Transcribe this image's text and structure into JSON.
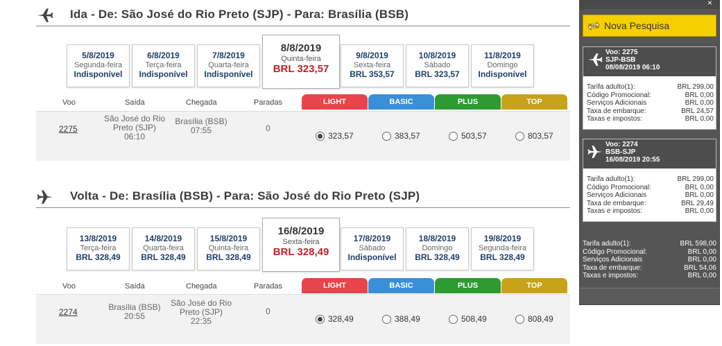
{
  "outbound": {
    "title": "Ida - De: São José do Rio Preto (SJP) - Para: Brasília (BSB)",
    "dates": [
      {
        "date": "5/8/2019",
        "weekday": "Segunda-feira",
        "price": "Indisponível"
      },
      {
        "date": "6/8/2019",
        "weekday": "Terça-feira",
        "price": "Indisponível"
      },
      {
        "date": "7/8/2019",
        "weekday": "Quarta-feira",
        "price": "Indisponível"
      },
      {
        "date": "8/8/2019",
        "weekday": "Quinta-feira",
        "price": "BRL 323,57"
      },
      {
        "date": "9/8/2019",
        "weekday": "Sexta-feira",
        "price": "BRL 353,57"
      },
      {
        "date": "10/8/2019",
        "weekday": "Sábado",
        "price": "BRL 323,57"
      },
      {
        "date": "11/8/2019",
        "weekday": "Domingo",
        "price": "Indisponível"
      }
    ],
    "flight": {
      "number": "2275",
      "departure": "São José do Rio Preto (SJP)",
      "departure_time": "06:10",
      "arrival": "Brasília (BSB)",
      "arrival_time": "07:55",
      "stops": "0"
    },
    "options": [
      "323,57",
      "383,57",
      "503,57",
      "803,57"
    ],
    "selected_option": 0
  },
  "return": {
    "title": "Volta - De: Brasília (BSB) - Para: São José do Rio Preto (SJP)",
    "dates": [
      {
        "date": "13/8/2019",
        "weekday": "Terça-feira",
        "price": "BRL 328,49"
      },
      {
        "date": "14/8/2019",
        "weekday": "Quarta-feira",
        "price": "BRL 328,49"
      },
      {
        "date": "15/8/2019",
        "weekday": "Quinta-feira",
        "price": "BRL 328,49"
      },
      {
        "date": "16/8/2019",
        "weekday": "Sexta-feira",
        "price": "BRL 328,49"
      },
      {
        "date": "17/8/2019",
        "weekday": "Sábado",
        "price": "Indisponível"
      },
      {
        "date": "18/8/2019",
        "weekday": "Domingo",
        "price": "BRL 328,49"
      },
      {
        "date": "19/8/2019",
        "weekday": "Segunda-feira",
        "price": "BRL 328,49"
      }
    ],
    "flight": {
      "number": "2274",
      "departure": "Brasília (BSB)",
      "departure_time": "20:55",
      "arrival": "São José do Rio Preto (SJP)",
      "arrival_time": "22:35",
      "stops": "0"
    },
    "options": [
      "328,49",
      "388,49",
      "508,49",
      "808,49"
    ],
    "selected_option": 0
  },
  "columns": {
    "flight": "Voo",
    "departure": "Saída",
    "arrival": "Chegada",
    "stops": "Paradas"
  },
  "fares": [
    {
      "label": "LIGHT",
      "color": "#e8444a"
    },
    {
      "label": "BASIC",
      "color": "#3a8fd8"
    },
    {
      "label": "PLUS",
      "color": "#2e9a32"
    },
    {
      "label": "TOP",
      "color": "#c7a21a"
    }
  ],
  "sidebar": {
    "close": "×",
    "new_search": "Nova Pesquisa",
    "cards": [
      {
        "flight": "Voo: 2275",
        "route": "SJP-BSB",
        "datetime": "08/08/2019 06:10",
        "lines": [
          {
            "k": "Tarifa adulto(1):",
            "v": "BRL 299,00"
          },
          {
            "k": "Código Promocional:",
            "v": "BRL 0,00"
          },
          {
            "k": "Serviços Adicionais",
            "v": "BRL 0,00"
          },
          {
            "k": "Taxa de embarque:",
            "v": "BRL 24,57"
          },
          {
            "k": "Taxas e impostos:",
            "v": "BRL 0,00"
          }
        ]
      },
      {
        "flight": "Voo: 2274",
        "route": "BSB-SJP",
        "datetime": "16/08/2019 20:55",
        "lines": [
          {
            "k": "Tarifa adulto(1):",
            "v": "BRL 299,00"
          },
          {
            "k": "Código Promocional:",
            "v": "BRL 0,00"
          },
          {
            "k": "Serviços Adicionais",
            "v": "BRL 0,00"
          },
          {
            "k": "Taxa de embarque:",
            "v": "BRL 29,49"
          },
          {
            "k": "Taxas e impostos:",
            "v": "BRL 0,00"
          }
        ]
      }
    ],
    "totals": [
      {
        "k": "Tarifa adulto(1):",
        "v": "BRL 598,00"
      },
      {
        "k": "Código Promocional:",
        "v": "BRL 0,00"
      },
      {
        "k": "Serviços Adicionais",
        "v": "BRL 0,00"
      },
      {
        "k": "Taxa de embarque:",
        "v": "BRL 54,06"
      },
      {
        "k": "Taxas e impostos:",
        "v": "BRL 0,00"
      }
    ]
  }
}
